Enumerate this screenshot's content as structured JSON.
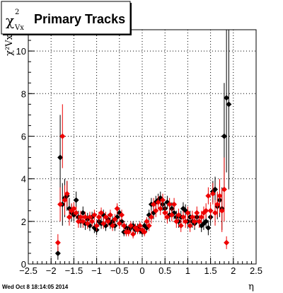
{
  "title_box": {
    "symbol": "χ",
    "superscript": "2",
    "subscript": "Vx",
    "title": "Primary Tracks"
  },
  "footer": {
    "timestamp": "Wed Oct  8 18:14:05 2014"
  },
  "chart_data": {
    "type": "scatter",
    "title": "Primary Tracks",
    "xlabel": "η",
    "ylabel": "χ²Vx",
    "xlim": [
      -2.5,
      2.5
    ],
    "ylim": [
      0,
      11
    ],
    "x_ticks": [
      "−2.5",
      "−2",
      "−1.5",
      "−1",
      "−0.5",
      "0",
      "0.5",
      "1",
      "1.5",
      "2",
      "2.5"
    ],
    "y_ticks": [
      "0",
      "2",
      "4",
      "6",
      "8",
      "10"
    ],
    "grid": true,
    "colors": {
      "series_black": "#000000",
      "series_red": "#ee0000"
    },
    "series": [
      {
        "marker": "diamond",
        "color": "#000000",
        "points": [
          [
            -1.85,
            0.5,
            0.3
          ],
          [
            -1.8,
            5.0,
            2.0
          ],
          [
            -1.75,
            2.8,
            1.0
          ],
          [
            -1.7,
            3.1,
            0.9
          ],
          [
            -1.65,
            3.2,
            0.7
          ],
          [
            -1.6,
            2.6,
            0.5
          ],
          [
            -1.55,
            2.4,
            0.4
          ],
          [
            -1.5,
            2.3,
            0.3
          ],
          [
            -1.45,
            3.0,
            0.4
          ],
          [
            -1.4,
            2.2,
            0.3
          ],
          [
            -1.35,
            2.0,
            0.3
          ],
          [
            -1.3,
            2.4,
            0.3
          ],
          [
            -1.25,
            1.9,
            0.3
          ],
          [
            -1.2,
            2.1,
            0.3
          ],
          [
            -1.15,
            1.8,
            0.25
          ],
          [
            -1.1,
            2.2,
            0.25
          ],
          [
            -1.05,
            1.7,
            0.25
          ],
          [
            -1.0,
            1.6,
            0.25
          ],
          [
            -0.95,
            2.0,
            0.25
          ],
          [
            -0.9,
            1.9,
            0.25
          ],
          [
            -0.85,
            2.3,
            0.25
          ],
          [
            -0.8,
            1.8,
            0.25
          ],
          [
            -0.75,
            2.1,
            0.25
          ],
          [
            -0.7,
            1.9,
            0.25
          ],
          [
            -0.65,
            2.0,
            0.25
          ],
          [
            -0.6,
            1.8,
            0.25
          ],
          [
            -0.55,
            2.2,
            0.25
          ],
          [
            -0.5,
            2.4,
            0.25
          ],
          [
            -0.45,
            2.0,
            0.25
          ],
          [
            -0.4,
            1.5,
            0.2
          ],
          [
            -0.35,
            1.7,
            0.2
          ],
          [
            -0.3,
            1.6,
            0.2
          ],
          [
            -0.25,
            1.7,
            0.2
          ],
          [
            -0.2,
            1.8,
            0.2
          ],
          [
            -0.15,
            1.6,
            0.2
          ],
          [
            -0.1,
            1.7,
            0.2
          ],
          [
            -0.05,
            1.6,
            0.2
          ],
          [
            0.0,
            1.5,
            0.2
          ],
          [
            0.05,
            1.8,
            0.2
          ],
          [
            0.1,
            1.7,
            0.2
          ],
          [
            0.15,
            2.3,
            0.25
          ],
          [
            0.2,
            2.8,
            0.3
          ],
          [
            0.25,
            2.4,
            0.3
          ],
          [
            0.3,
            2.9,
            0.3
          ],
          [
            0.35,
            3.0,
            0.3
          ],
          [
            0.4,
            3.1,
            0.3
          ],
          [
            0.45,
            2.8,
            0.3
          ],
          [
            0.5,
            2.6,
            0.3
          ],
          [
            0.55,
            2.9,
            0.3
          ],
          [
            0.6,
            2.3,
            0.3
          ],
          [
            0.65,
            2.6,
            0.3
          ],
          [
            0.7,
            2.4,
            0.3
          ],
          [
            0.75,
            2.2,
            0.3
          ],
          [
            0.8,
            2.0,
            0.3
          ],
          [
            0.85,
            2.2,
            0.3
          ],
          [
            0.9,
            2.6,
            0.3
          ],
          [
            0.95,
            2.5,
            0.3
          ],
          [
            1.0,
            2.0,
            0.3
          ],
          [
            1.05,
            2.2,
            0.3
          ],
          [
            1.1,
            2.0,
            0.3
          ],
          [
            1.15,
            1.9,
            0.3
          ],
          [
            1.2,
            2.2,
            0.3
          ],
          [
            1.25,
            2.0,
            0.3
          ],
          [
            1.3,
            1.8,
            0.3
          ],
          [
            1.35,
            1.9,
            0.3
          ],
          [
            1.4,
            2.0,
            0.3
          ],
          [
            1.45,
            1.7,
            0.35
          ],
          [
            1.5,
            2.2,
            0.4
          ],
          [
            1.55,
            3.4,
            0.5
          ],
          [
            1.6,
            3.5,
            0.6
          ],
          [
            1.65,
            2.7,
            0.6
          ],
          [
            1.7,
            3.0,
            0.8
          ],
          [
            1.75,
            2.6,
            1.0
          ],
          [
            1.8,
            6.0,
            2.5
          ],
          [
            1.85,
            7.8,
            3.5
          ],
          [
            1.9,
            7.5,
            4.0
          ]
        ]
      },
      {
        "marker": "diamond",
        "color": "#ee0000",
        "points": [
          [
            -1.85,
            1.0,
            0.4
          ],
          [
            -1.8,
            2.8,
            0.8
          ],
          [
            -1.75,
            6.0,
            1.5
          ],
          [
            -1.7,
            3.0,
            0.7
          ],
          [
            -1.65,
            3.3,
            0.6
          ],
          [
            -1.6,
            2.2,
            0.4
          ],
          [
            -1.55,
            2.5,
            0.35
          ],
          [
            -1.5,
            2.6,
            0.3
          ],
          [
            -1.45,
            2.4,
            0.3
          ],
          [
            -1.4,
            2.0,
            0.3
          ],
          [
            -1.35,
            2.2,
            0.3
          ],
          [
            -1.3,
            2.0,
            0.3
          ],
          [
            -1.25,
            2.2,
            0.25
          ],
          [
            -1.2,
            1.9,
            0.25
          ],
          [
            -1.15,
            2.2,
            0.25
          ],
          [
            -1.1,
            2.0,
            0.25
          ],
          [
            -1.05,
            2.3,
            0.25
          ],
          [
            -1.0,
            1.8,
            0.25
          ],
          [
            -0.95,
            2.2,
            0.25
          ],
          [
            -0.9,
            2.4,
            0.25
          ],
          [
            -0.85,
            1.9,
            0.25
          ],
          [
            -0.8,
            2.2,
            0.25
          ],
          [
            -0.75,
            2.0,
            0.25
          ],
          [
            -0.7,
            2.3,
            0.25
          ],
          [
            -0.65,
            1.8,
            0.25
          ],
          [
            -0.6,
            2.1,
            0.25
          ],
          [
            -0.55,
            2.6,
            0.25
          ],
          [
            -0.5,
            1.9,
            0.25
          ],
          [
            -0.45,
            2.3,
            0.25
          ],
          [
            -0.4,
            1.8,
            0.2
          ],
          [
            -0.35,
            1.5,
            0.2
          ],
          [
            -0.3,
            1.5,
            0.2
          ],
          [
            -0.25,
            1.8,
            0.2
          ],
          [
            -0.2,
            1.4,
            0.2
          ],
          [
            -0.15,
            1.7,
            0.2
          ],
          [
            -0.1,
            1.6,
            0.2
          ],
          [
            -0.05,
            1.8,
            0.2
          ],
          [
            0.0,
            1.6,
            0.2
          ],
          [
            0.05,
            1.5,
            0.2
          ],
          [
            0.1,
            2.0,
            0.2
          ],
          [
            0.15,
            1.8,
            0.25
          ],
          [
            0.2,
            2.2,
            0.3
          ],
          [
            0.25,
            2.8,
            0.3
          ],
          [
            0.3,
            2.5,
            0.3
          ],
          [
            0.35,
            2.9,
            0.3
          ],
          [
            0.4,
            2.6,
            0.3
          ],
          [
            0.45,
            3.0,
            0.3
          ],
          [
            0.5,
            2.4,
            0.3
          ],
          [
            0.55,
            2.2,
            0.3
          ],
          [
            0.6,
            2.8,
            0.3
          ],
          [
            0.65,
            2.3,
            0.3
          ],
          [
            0.7,
            2.8,
            0.3
          ],
          [
            0.75,
            2.0,
            0.3
          ],
          [
            0.8,
            2.3,
            0.3
          ],
          [
            0.85,
            1.8,
            0.3
          ],
          [
            0.9,
            2.2,
            0.3
          ],
          [
            0.95,
            2.0,
            0.3
          ],
          [
            1.0,
            2.4,
            0.3
          ],
          [
            1.05,
            1.8,
            0.3
          ],
          [
            1.1,
            2.2,
            0.3
          ],
          [
            1.15,
            2.0,
            0.3
          ],
          [
            1.2,
            2.4,
            0.3
          ],
          [
            1.25,
            2.0,
            0.3
          ],
          [
            1.3,
            2.2,
            0.3
          ],
          [
            1.35,
            2.4,
            0.3
          ],
          [
            1.4,
            2.5,
            0.35
          ],
          [
            1.45,
            3.2,
            0.4
          ],
          [
            1.5,
            2.5,
            0.4
          ],
          [
            1.55,
            3.3,
            0.5
          ],
          [
            1.6,
            2.4,
            0.6
          ],
          [
            1.65,
            2.8,
            0.6
          ],
          [
            1.7,
            3.2,
            0.8
          ],
          [
            1.75,
            2.5,
            1.0
          ],
          [
            1.8,
            3.5,
            1.5
          ],
          [
            1.85,
            1.0,
            0.3
          ]
        ]
      }
    ]
  }
}
